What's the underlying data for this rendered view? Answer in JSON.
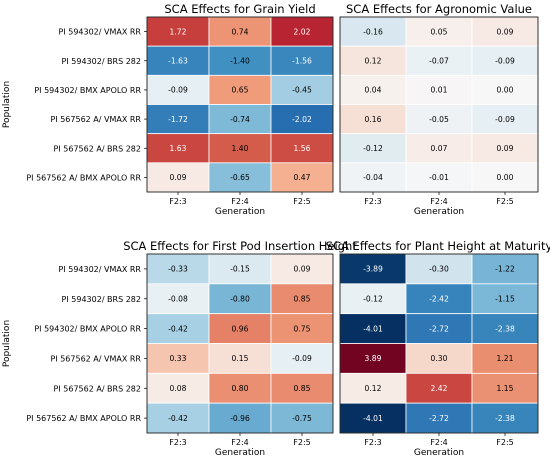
{
  "chart_data": [
    {
      "type": "heatmap",
      "title": "SCA Effects for Grain Yield",
      "xlabel": "Generation",
      "ylabel": "Population",
      "x": [
        "F2:3",
        "F2:4",
        "F2:5"
      ],
      "y": [
        "PI 594302/ VMAX RR",
        "PI 594302/ BRS 282",
        "PI 594302/ BMX APOLO RR",
        "PI 567562 A/ VMAX RR",
        "PI 567562 A/ BRS 282",
        "PI 567562 A/ BMX APOLO RR"
      ],
      "values": [
        [
          1.72,
          0.74,
          2.02
        ],
        [
          -1.63,
          -1.4,
          -1.56
        ],
        [
          -0.09,
          0.65,
          -0.45
        ],
        [
          -1.72,
          -0.74,
          -2.02
        ],
        [
          1.63,
          1.4,
          1.56
        ],
        [
          0.09,
          -0.65,
          0.47
        ]
      ],
      "labels": [
        [
          "1.72",
          "0.74",
          "2.02"
        ],
        [
          "-1.63",
          "-1.40",
          "-1.56"
        ],
        [
          "-0.09",
          "0.65",
          "-0.45"
        ],
        [
          "-1.72",
          "-0.74",
          "-2.02"
        ],
        [
          "1.63",
          "1.40",
          "1.56"
        ],
        [
          "0.09",
          "-0.65",
          "0.47"
        ]
      ],
      "color_range": [
        -2.7,
        2.7
      ],
      "colormap": "diverging blue-white-red"
    },
    {
      "type": "heatmap",
      "title": "SCA Effects for Agronomic Value",
      "xlabel": "Generation",
      "ylabel": "",
      "x": [
        "F2:3",
        "F2:4",
        "F2:5"
      ],
      "y": [],
      "values": [
        [
          -0.16,
          0.05,
          0.09
        ],
        [
          0.12,
          -0.07,
          -0.09
        ],
        [
          0.04,
          0.01,
          0.0
        ],
        [
          0.16,
          -0.05,
          -0.09
        ],
        [
          -0.12,
          0.07,
          0.09
        ],
        [
          -0.04,
          -0.01,
          0.0
        ]
      ],
      "labels": [
        [
          "-0.16",
          "0.05",
          "0.09"
        ],
        [
          "0.12",
          "-0.07",
          "-0.09"
        ],
        [
          "0.04",
          "0.01",
          "0.00"
        ],
        [
          "0.16",
          "-0.05",
          "-0.09"
        ],
        [
          "-0.12",
          "0.07",
          "0.09"
        ],
        [
          "-0.04",
          "-0.01",
          "0.00"
        ]
      ],
      "color_range": [
        -2.7,
        2.7
      ],
      "colormap": "diverging blue-white-red"
    },
    {
      "type": "heatmap",
      "title": "SCA Effects for First Pod Insertion Height",
      "xlabel": "Generation",
      "ylabel": "Population",
      "x": [
        "F2:3",
        "F2:4",
        "F2:5"
      ],
      "y": [
        "PI 594302/ VMAX RR",
        "PI 594302/ BRS 282",
        "PI 594302/ BMX APOLO RR",
        "PI 567562 A/ VMAX RR",
        "PI 567562 A/ BRS 282",
        "PI 567562 A/ BMX APOLO RR"
      ],
      "values": [
        [
          -0.33,
          -0.15,
          0.09
        ],
        [
          -0.08,
          -0.8,
          0.85
        ],
        [
          -0.42,
          0.96,
          0.75
        ],
        [
          0.33,
          0.15,
          -0.09
        ],
        [
          0.08,
          0.8,
          0.85
        ],
        [
          -0.42,
          -0.96,
          -0.75
        ]
      ],
      "labels": [
        [
          "-0.33",
          "-0.15",
          "0.09"
        ],
        [
          "-0.08",
          "-0.80",
          "0.85"
        ],
        [
          "-0.42",
          "0.96",
          "0.75"
        ],
        [
          "0.33",
          "0.15",
          "-0.09"
        ],
        [
          "0.08",
          "0.80",
          "0.85"
        ],
        [
          "-0.42",
          "-0.96",
          "-0.75"
        ]
      ],
      "color_range": [
        -2.7,
        2.7
      ],
      "colormap": "diverging blue-white-red"
    },
    {
      "type": "heatmap",
      "title": "SCA Effects for Plant Height at Maturity",
      "xlabel": "Generation",
      "ylabel": "",
      "x": [
        "F2:3",
        "F2:4",
        "F2:5"
      ],
      "y": [],
      "values": [
        [
          -3.89,
          -0.3,
          -1.22
        ],
        [
          -0.12,
          -2.42,
          -1.15
        ],
        [
          -4.01,
          -2.72,
          -2.38
        ],
        [
          3.89,
          0.3,
          1.21
        ],
        [
          0.12,
          2.42,
          1.15
        ],
        [
          -4.01,
          -2.72,
          -2.38
        ]
      ],
      "labels": [
        [
          "-3.89",
          "-0.30",
          "-1.22"
        ],
        [
          "-0.12",
          "-2.42",
          "-1.15"
        ],
        [
          "-4.01",
          "-2.72",
          "-2.38"
        ],
        [
          "3.89",
          "0.30",
          "1.21"
        ],
        [
          "0.12",
          "2.42",
          "1.15"
        ],
        [
          "-4.01",
          "-2.72",
          "-2.38"
        ]
      ],
      "color_range": [
        -4.01,
        4.01
      ],
      "colormap": "diverging blue-white-red"
    }
  ]
}
